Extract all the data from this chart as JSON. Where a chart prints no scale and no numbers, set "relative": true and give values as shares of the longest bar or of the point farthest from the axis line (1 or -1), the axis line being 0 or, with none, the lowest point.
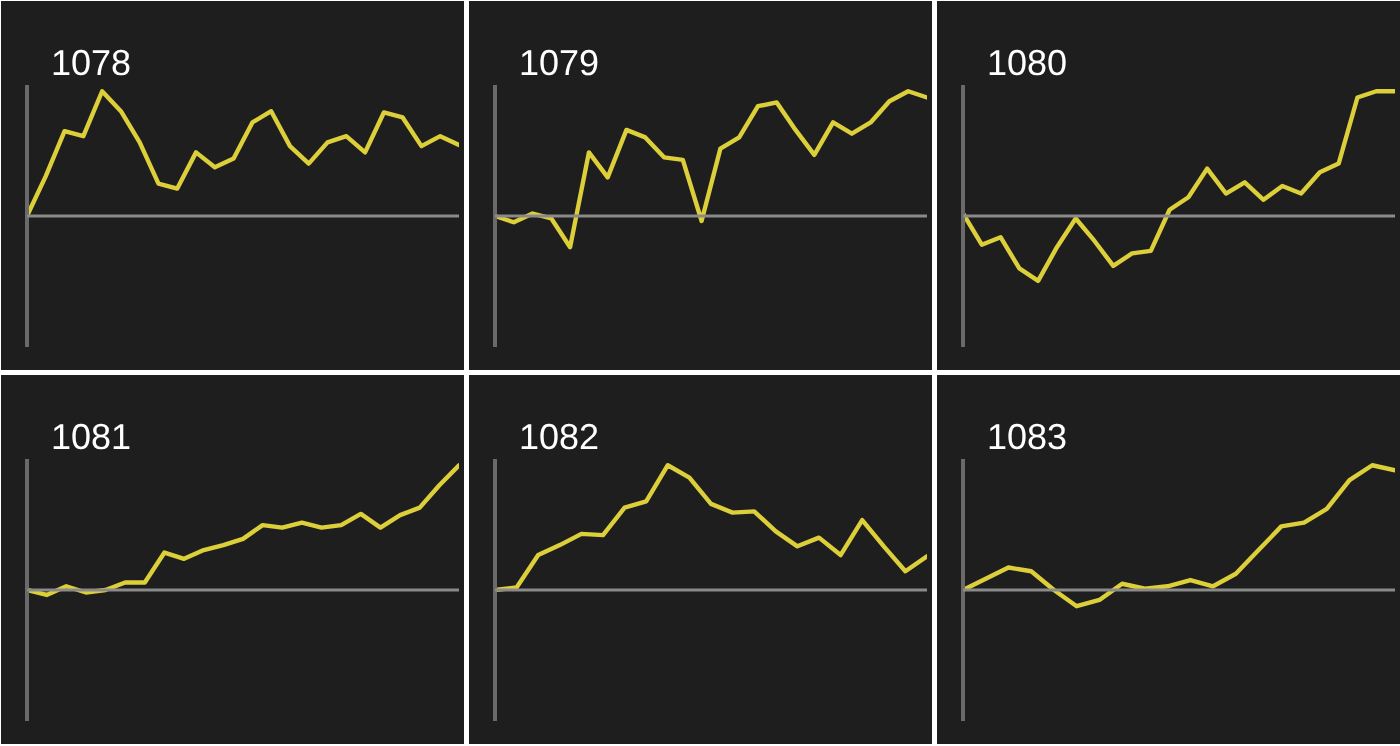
{
  "chart_data": [
    {
      "type": "line",
      "title": "1078",
      "relative": true,
      "categories": [
        null,
        null,
        null,
        null,
        null,
        null,
        null,
        null,
        null,
        null,
        null,
        null,
        null,
        null,
        null,
        null,
        null,
        null,
        null,
        null,
        null,
        null,
        null,
        null
      ],
      "series": [
        {
          "color": "#dccf3a",
          "values": [
            0,
            0.32,
            0.68,
            0.64,
            1,
            0.84,
            0.59,
            0.26,
            0.22,
            0.51,
            0.39,
            0.46,
            0.75,
            0.84,
            0.56,
            0.42,
            0.59,
            0.64,
            0.51,
            0.83,
            0.79,
            0.56,
            0.64,
            0.57
          ]
        }
      ]
    },
    {
      "type": "line",
      "title": "1079",
      "relative": true,
      "categories": [
        null,
        null,
        null,
        null,
        null,
        null,
        null,
        null,
        null,
        null,
        null,
        null,
        null,
        null,
        null,
        null,
        null,
        null,
        null,
        null,
        null,
        null,
        null,
        null
      ],
      "series": [
        {
          "color": "#dccf3a",
          "values": [
            0,
            -0.05,
            0.02,
            -0.02,
            -0.25,
            0.51,
            0.31,
            0.69,
            0.63,
            0.47,
            0.45,
            -0.04,
            0.54,
            0.63,
            0.88,
            0.91,
            0.69,
            0.49,
            0.75,
            0.66,
            0.75,
            0.92,
            1,
            0.95
          ]
        }
      ]
    },
    {
      "type": "line",
      "title": "1080",
      "relative": true,
      "categories": [
        null,
        null,
        null,
        null,
        null,
        null,
        null,
        null,
        null,
        null,
        null,
        null,
        null,
        null,
        null,
        null,
        null,
        null,
        null,
        null,
        null,
        null,
        null,
        null
      ],
      "series": [
        {
          "color": "#dccf3a",
          "values": [
            0.02,
            -0.23,
            -0.17,
            -0.42,
            -0.52,
            -0.25,
            -0.02,
            -0.2,
            -0.4,
            -0.3,
            -0.28,
            0.05,
            0.15,
            0.38,
            0.18,
            0.27,
            0.13,
            0.24,
            0.18,
            0.35,
            0.42,
            0.95,
            1,
            1
          ]
        }
      ]
    },
    {
      "type": "line",
      "title": "1081",
      "relative": true,
      "categories": [
        null,
        null,
        null,
        null,
        null,
        null,
        null,
        null,
        null,
        null,
        null,
        null,
        null,
        null,
        null,
        null,
        null,
        null,
        null,
        null,
        null,
        null,
        null
      ],
      "series": [
        {
          "color": "#dccf3a",
          "values": [
            0,
            -0.04,
            0.03,
            -0.02,
            0,
            0.06,
            0.06,
            0.3,
            0.25,
            0.32,
            0.36,
            0.41,
            0.52,
            0.5,
            0.54,
            0.5,
            0.52,
            0.61,
            0.5,
            0.6,
            0.66,
            0.84,
            1
          ]
        }
      ]
    },
    {
      "type": "line",
      "title": "1082",
      "relative": true,
      "categories": [
        null,
        null,
        null,
        null,
        null,
        null,
        null,
        null,
        null,
        null,
        null,
        null,
        null,
        null,
        null,
        null,
        null,
        null,
        null,
        null,
        null
      ],
      "series": [
        {
          "color": "#dccf3a",
          "values": [
            0,
            0.02,
            0.28,
            0.36,
            0.45,
            0.44,
            0.66,
            0.71,
            1,
            0.9,
            0.69,
            0.62,
            0.63,
            0.47,
            0.35,
            0.42,
            0.28,
            0.56,
            0.35,
            0.15,
            0.27
          ]
        }
      ]
    },
    {
      "type": "line",
      "title": "1083",
      "relative": true,
      "categories": [
        null,
        null,
        null,
        null,
        null,
        null,
        null,
        null,
        null,
        null,
        null,
        null,
        null,
        null,
        null,
        null,
        null,
        null,
        null,
        null
      ],
      "series": [
        {
          "color": "#dccf3a",
          "values": [
            0,
            0.09,
            0.18,
            0.15,
            0,
            -0.13,
            -0.08,
            0.05,
            0.01,
            0.03,
            0.08,
            0.03,
            0.13,
            0.32,
            0.51,
            0.54,
            0.65,
            0.88,
            1,
            0.96
          ]
        }
      ]
    }
  ]
}
